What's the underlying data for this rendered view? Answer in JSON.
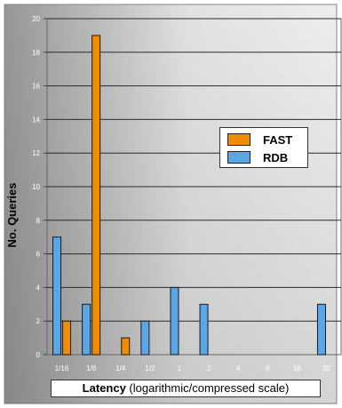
{
  "chart_data": {
    "type": "bar",
    "categories": [
      "1/16",
      "1/8",
      "1/4",
      "1/2",
      "1",
      "2",
      "4",
      "8",
      "16",
      "32"
    ],
    "series": [
      {
        "name": "FAST",
        "color": "#f08c00",
        "values": [
          2,
          19,
          1,
          0,
          0,
          0,
          0,
          0,
          0,
          0
        ]
      },
      {
        "name": "RDB",
        "color": "#5aa6e6",
        "values": [
          7,
          3,
          0,
          2,
          4,
          3,
          0,
          0,
          0,
          3
        ]
      }
    ],
    "ylabel": "No. Queries",
    "xlabel_bold": "Latency",
    "xlabel_rest": " (logarithmic/compressed scale)",
    "ylim": [
      0,
      20
    ],
    "yticks": [
      0,
      2,
      4,
      6,
      8,
      10,
      12,
      14,
      16,
      18,
      20
    ],
    "grid": true,
    "legend_position": "upper-right",
    "plot_background": "gradient grey-to-white"
  }
}
